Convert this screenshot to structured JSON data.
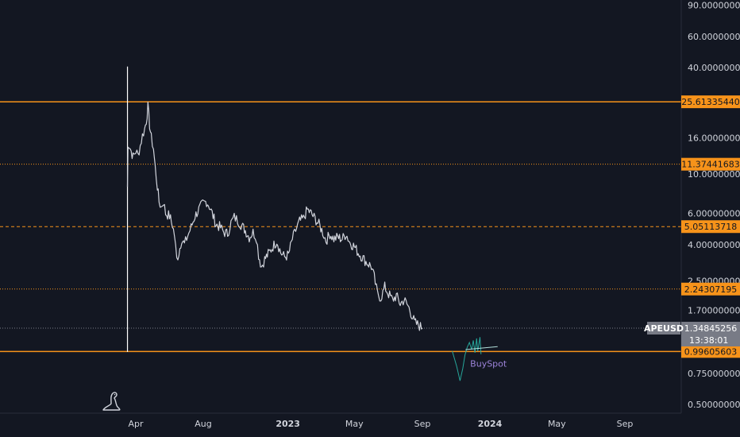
{
  "chart_data": {
    "type": "candlestick",
    "symbol": "APEUSD",
    "scale": "log",
    "y_ticks": [
      {
        "value": 90,
        "label": "90.00000000"
      },
      {
        "value": 60,
        "label": "60.00000000"
      },
      {
        "value": 40,
        "label": "40.00000000"
      },
      {
        "value": 16,
        "label": "16.00000000"
      },
      {
        "value": 10,
        "label": "10.00000000"
      },
      {
        "value": 6,
        "label": "6.00000000"
      },
      {
        "value": 4,
        "label": "4.00000000"
      },
      {
        "value": 2.5,
        "label": "2.50000000"
      },
      {
        "value": 1.7,
        "label": "1.70000000"
      },
      {
        "value": 0.75,
        "label": "0.75000000"
      },
      {
        "value": 0.5,
        "label": "0.50000000"
      }
    ],
    "x_ticks": [
      {
        "date": "2022-04",
        "label": "Apr",
        "bold": false
      },
      {
        "date": "2022-08",
        "label": "Aug",
        "bold": false
      },
      {
        "date": "2023-01",
        "label": "2023",
        "bold": true
      },
      {
        "date": "2023-05",
        "label": "May",
        "bold": false
      },
      {
        "date": "2023-09",
        "label": "Sep",
        "bold": false
      },
      {
        "date": "2024-01",
        "label": "2024",
        "bold": true
      },
      {
        "date": "2024-05",
        "label": "May",
        "bold": false
      },
      {
        "date": "2024-09",
        "label": "Sep",
        "bold": false
      }
    ],
    "levels": [
      {
        "value": 25.6133544,
        "label": "25.61335440",
        "style": "solid"
      },
      {
        "value": 11.37441683,
        "label": "11.37441683",
        "style": "dotted"
      },
      {
        "value": 5.05113718,
        "label": "5.05113718",
        "style": "dashed"
      },
      {
        "value": 2.24307195,
        "label": "2.24307195",
        "style": "dotted"
      },
      {
        "value": 0.99605603,
        "label": "0.99605603",
        "style": "solid"
      }
    ],
    "current": {
      "symbol": "APEUSD",
      "price_label": "1.34845256",
      "price": 1.34845256,
      "countdown": "13:38:01"
    },
    "annotation": {
      "text": "BuySpot",
      "date": "2023-12-05",
      "value": 0.85
    },
    "colors": {
      "background": "#131722",
      "price": "#d1d4dc",
      "level": "#f7931a",
      "tag": "#787b86"
    },
    "price_path": [
      [
        "2022-03-17",
        8.5
      ],
      [
        "2022-03-18",
        15.0
      ],
      [
        "2022-03-22",
        14.0
      ],
      [
        "2022-03-27",
        12.5
      ],
      [
        "2022-04-01",
        13.5
      ],
      [
        "2022-04-05",
        12.8
      ],
      [
        "2022-04-09",
        14.5
      ],
      [
        "2022-04-13",
        16.5
      ],
      [
        "2022-04-17",
        18.0
      ],
      [
        "2022-04-20",
        20.0
      ],
      [
        "2022-04-23",
        24.0
      ],
      [
        "2022-04-26",
        19.0
      ],
      [
        "2022-04-29",
        16.0
      ],
      [
        "2022-05-03",
        14.0
      ],
      [
        "2022-05-06",
        11.0
      ],
      [
        "2022-05-10",
        8.5
      ],
      [
        "2022-05-13",
        7.0
      ],
      [
        "2022-05-17",
        6.5
      ],
      [
        "2022-05-21",
        7.0
      ],
      [
        "2022-05-25",
        6.0
      ],
      [
        "2022-06-01",
        5.8
      ],
      [
        "2022-06-06",
        5.2
      ],
      [
        "2022-06-10",
        4.5
      ],
      [
        "2022-06-14",
        3.3
      ],
      [
        "2022-06-18",
        3.6
      ],
      [
        "2022-06-23",
        4.3
      ],
      [
        "2022-06-28",
        4.0
      ],
      [
        "2022-07-04",
        4.5
      ],
      [
        "2022-07-10",
        5.0
      ],
      [
        "2022-07-17",
        5.8
      ],
      [
        "2022-07-24",
        6.3
      ],
      [
        "2022-07-31",
        6.8
      ],
      [
        "2022-08-07",
        7.0
      ],
      [
        "2022-08-12",
        6.6
      ],
      [
        "2022-08-17",
        6.0
      ],
      [
        "2022-08-24",
        5.2
      ],
      [
        "2022-09-01",
        5.0
      ],
      [
        "2022-09-07",
        4.7
      ],
      [
        "2022-09-14",
        4.6
      ],
      [
        "2022-09-20",
        5.3
      ],
      [
        "2022-09-26",
        5.7
      ],
      [
        "2022-10-02",
        5.5
      ],
      [
        "2022-10-08",
        5.2
      ],
      [
        "2022-10-16",
        4.8
      ],
      [
        "2022-10-23",
        4.4
      ],
      [
        "2022-10-30",
        4.7
      ],
      [
        "2022-11-05",
        4.4
      ],
      [
        "2022-11-09",
        3.5
      ],
      [
        "2022-11-14",
        3.0
      ],
      [
        "2022-11-20",
        3.3
      ],
      [
        "2022-11-28",
        3.6
      ],
      [
        "2022-12-05",
        3.9
      ],
      [
        "2022-12-12",
        4.2
      ],
      [
        "2022-12-19",
        3.6
      ],
      [
        "2022-12-26",
        3.4
      ],
      [
        "2023-01-02",
        3.5
      ],
      [
        "2023-01-09",
        4.3
      ],
      [
        "2023-01-15",
        4.8
      ],
      [
        "2023-01-22",
        5.4
      ],
      [
        "2023-01-29",
        5.6
      ],
      [
        "2023-02-05",
        6.3
      ],
      [
        "2023-02-12",
        6.0
      ],
      [
        "2023-02-19",
        5.6
      ],
      [
        "2023-02-26",
        5.2
      ],
      [
        "2023-03-05",
        4.7
      ],
      [
        "2023-03-11",
        4.2
      ],
      [
        "2023-03-18",
        4.6
      ],
      [
        "2023-03-25",
        4.3
      ],
      [
        "2023-04-01",
        4.4
      ],
      [
        "2023-04-09",
        4.3
      ],
      [
        "2023-04-16",
        4.6
      ],
      [
        "2023-04-23",
        4.1
      ],
      [
        "2023-05-01",
        3.9
      ],
      [
        "2023-05-08",
        3.6
      ],
      [
        "2023-05-15",
        3.4
      ],
      [
        "2023-05-22",
        3.2
      ],
      [
        "2023-06-01",
        3.0
      ],
      [
        "2023-06-06",
        2.6
      ],
      [
        "2023-06-12",
        2.1
      ],
      [
        "2023-06-18",
        2.0
      ],
      [
        "2023-06-25",
        2.3
      ],
      [
        "2023-07-02",
        2.1
      ],
      [
        "2023-07-09",
        1.95
      ],
      [
        "2023-07-16",
        2.05
      ],
      [
        "2023-07-23",
        1.85
      ],
      [
        "2023-07-30",
        1.95
      ],
      [
        "2023-08-06",
        1.8
      ],
      [
        "2023-08-13",
        1.6
      ],
      [
        "2023-08-18",
        1.45
      ],
      [
        "2023-08-25",
        1.4
      ],
      [
        "2023-09-01",
        1.35
      ]
    ]
  }
}
